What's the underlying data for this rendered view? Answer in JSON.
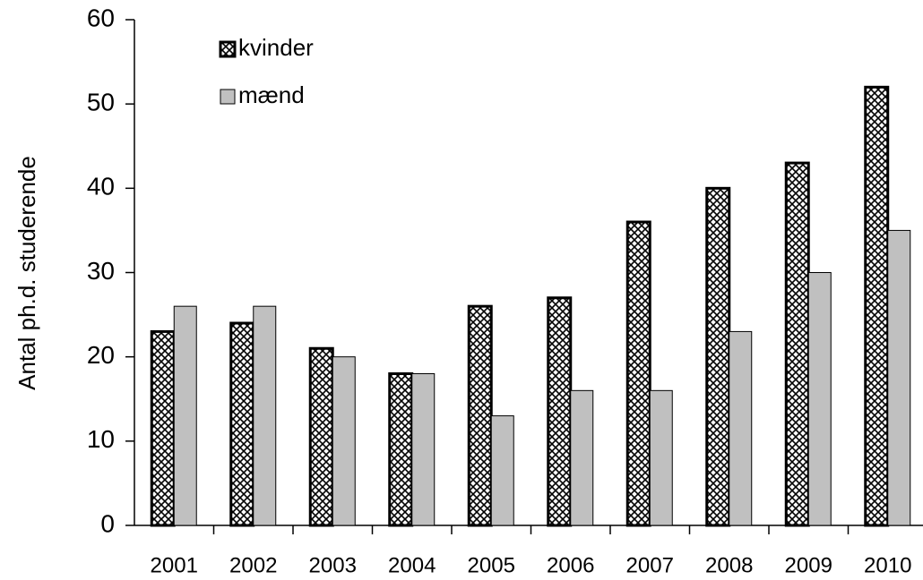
{
  "chart_data": {
    "type": "bar",
    "y_label": "Antal ph.d. studerende",
    "categories": [
      "2001",
      "2002",
      "2003",
      "2004",
      "2005",
      "2006",
      "2007",
      "2008",
      "2009",
      "2010"
    ],
    "series": [
      {
        "name": "kvinder",
        "color": "#000000",
        "values": [
          23,
          24,
          21,
          18,
          26,
          27,
          36,
          40,
          43,
          52
        ]
      },
      {
        "name": "mænd",
        "color": "#c0c0c0",
        "values": [
          26,
          26,
          20,
          18,
          13,
          16,
          16,
          23,
          30,
          35
        ]
      }
    ],
    "ylim": [
      0,
      60
    ],
    "yticks": [
      0,
      10,
      20,
      30,
      40,
      50,
      60
    ],
    "grid": false,
    "legend": "upper left"
  }
}
